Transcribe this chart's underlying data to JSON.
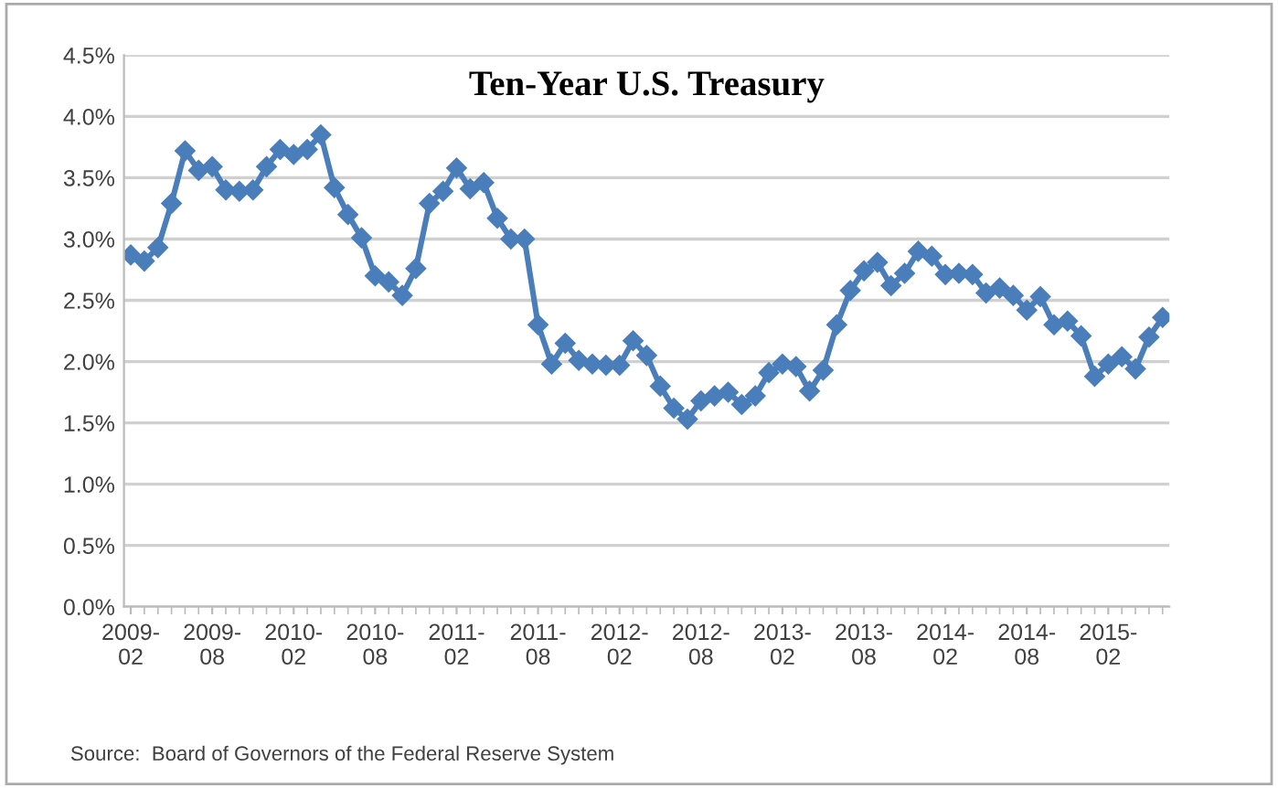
{
  "chart_data": {
    "type": "line",
    "title": "Ten-Year U.S. Treasury",
    "categories": [
      "2009-02",
      null,
      null,
      null,
      null,
      null,
      "2009-08",
      null,
      null,
      null,
      null,
      null,
      "2010-02",
      null,
      null,
      null,
      null,
      null,
      "2010-08",
      null,
      null,
      null,
      null,
      null,
      "2011-02",
      null,
      null,
      null,
      null,
      null,
      "2011-08",
      null,
      null,
      null,
      null,
      null,
      "2012-02",
      null,
      null,
      null,
      null,
      null,
      "2012-08",
      null,
      null,
      null,
      null,
      null,
      "2013-02",
      null,
      null,
      null,
      null,
      null,
      "2013-08",
      null,
      null,
      null,
      null,
      null,
      "2014-02",
      null,
      null,
      null,
      null,
      null,
      "2014-08",
      null,
      null,
      null,
      null,
      null,
      "2015-02",
      null,
      null,
      null,
      null
    ],
    "series": [
      {
        "color": "#4a7ebb",
        "values": [
          2.87,
          2.82,
          2.93,
          3.29,
          3.72,
          3.56,
          3.59,
          3.4,
          3.39,
          3.4,
          3.59,
          3.73,
          3.69,
          3.73,
          3.85,
          3.42,
          3.2,
          3.01,
          2.7,
          2.65,
          2.54,
          2.76,
          3.29,
          3.39,
          3.58,
          3.41,
          3.46,
          3.17,
          3.0,
          3.0,
          2.3,
          1.98,
          2.15,
          2.01,
          1.98,
          1.97,
          1.97,
          2.17,
          2.05,
          1.8,
          1.62,
          1.53,
          1.68,
          1.72,
          1.75,
          1.65,
          1.72,
          1.91,
          1.98,
          1.96,
          1.76,
          1.93,
          2.3,
          2.58,
          2.74,
          2.81,
          2.62,
          2.72,
          2.9,
          2.86,
          2.71,
          2.72,
          2.71,
          2.56,
          2.6,
          2.54,
          2.42,
          2.53,
          2.3,
          2.33,
          2.21,
          1.88,
          1.98,
          2.04,
          1.94,
          2.2,
          2.36
        ]
      }
    ],
    "ylim": [
      0,
      4.5
    ],
    "yticks": [
      {
        "value": 0,
        "label": "0.0%"
      },
      {
        "value": 0.5,
        "label": "0.5%"
      },
      {
        "value": 1,
        "label": "1.0%"
      },
      {
        "value": 1.5,
        "label": "1.5%"
      },
      {
        "value": 2,
        "label": "2.0%"
      },
      {
        "value": 2.5,
        "label": "2.5%"
      },
      {
        "value": 3,
        "label": "3.0%"
      },
      {
        "value": 3.5,
        "label": "3.5%"
      },
      {
        "value": 4,
        "label": "4.0%"
      },
      {
        "value": 4.5,
        "label": "4.5%"
      }
    ],
    "grid": "y",
    "marker": "diamond",
    "line_style": "solid",
    "annotations": [
      "Source:  Board of Governors of the Federal Reserve System"
    ]
  }
}
